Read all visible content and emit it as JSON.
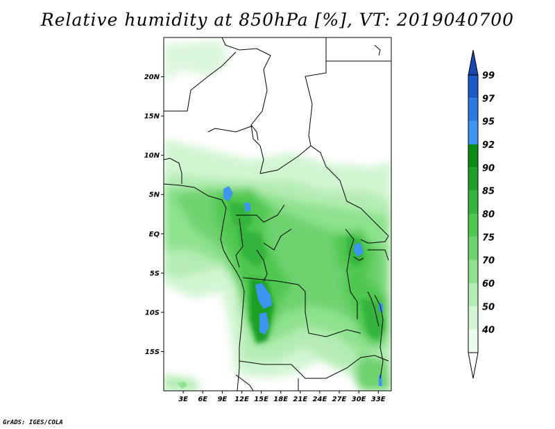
{
  "title": "Relative humidity at 850hPa [%], VT: 2019040700",
  "credit": "GrADS: IGES/COLA",
  "map": {
    "lon_range": [
      0,
      35
    ],
    "lat_range": [
      -20,
      25
    ],
    "lat_ticks": [
      "20N",
      "15N",
      "10N",
      "5N",
      "EQ",
      "5S",
      "10S",
      "15S"
    ],
    "lon_ticks": [
      "3E",
      "6E",
      "9E",
      "12E",
      "15E",
      "18E",
      "21E",
      "24E",
      "27E",
      "30E",
      "33E"
    ]
  },
  "colorbar": {
    "labels": [
      "99",
      "97",
      "95",
      "92",
      "90",
      "85",
      "80",
      "75",
      "70",
      "60",
      "50",
      "40"
    ],
    "colors": [
      "#1c5ac8",
      "#2a78e0",
      "#3c96f0",
      "#0a8c14",
      "#1ea028",
      "#34b43c",
      "#50c850",
      "#6ed26e",
      "#8ee28e",
      "#b4ecb4",
      "#d2f5d2",
      "#eafcea"
    ],
    "top_color": "#1a47b0",
    "bottom_color": "#ffffff"
  }
}
